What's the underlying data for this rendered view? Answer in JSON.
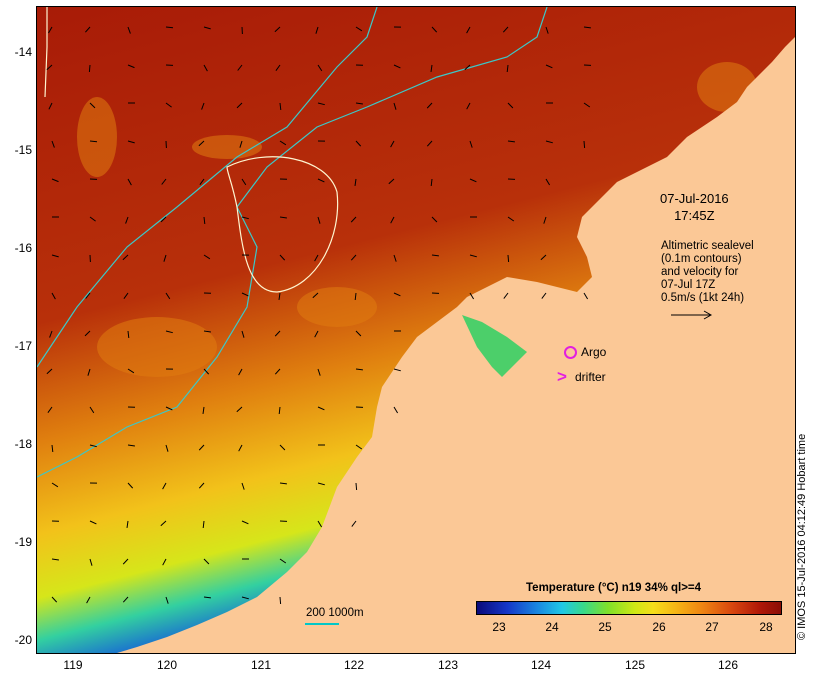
{
  "map": {
    "lat_ticks": [
      "-14",
      "-15",
      "-16",
      "-17",
      "-18",
      "-19",
      "-20"
    ],
    "lon_ticks": [
      "119",
      "120",
      "121",
      "122",
      "123",
      "124",
      "125",
      "126"
    ],
    "lon_range": [
      118.65,
      126.7
    ],
    "lat_range": [
      -20.1,
      -13.5
    ]
  },
  "annotations": {
    "date": "07-Jul-2016",
    "time": "17:45Z",
    "altimetry_lines": [
      "Altimetric sealevel",
      "(0.1m contours)",
      "and velocity for",
      "07-Jul 17Z",
      "0.5m/s (1kt 24h)"
    ],
    "argo_label": "Argo",
    "drifter_label": "drifter",
    "drifter_symbol": ">",
    "scale_label": "200  1000m"
  },
  "colorbar": {
    "title": "Temperature (°C) n19 34% ql>=4",
    "ticks": [
      "23",
      "24",
      "25",
      "26",
      "27",
      "28"
    ]
  },
  "footer": "© IMOS 15-Jul-2016 04:12:49 Hobart time",
  "colors": {
    "land": "#fbc896",
    "warm_sst": "#a61a06",
    "isobath": "#3cc8c8",
    "contour": "#fff5d0",
    "marker": "#e21fe0"
  }
}
